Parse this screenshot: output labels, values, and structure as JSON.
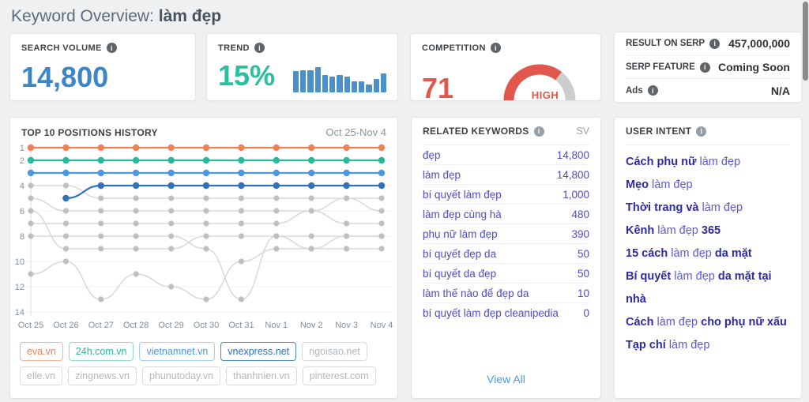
{
  "page": {
    "title_prefix": "Keyword Overview: ",
    "title_keyword": "làm đẹp"
  },
  "colors": {
    "accent_blue": "#3a86c6",
    "accent_green": "#2abf9d",
    "accent_red": "#e2574c",
    "keyword_purple": "#4d4cc4",
    "intent_dark": "#2c2ba4",
    "link_blue": "#4e97e8",
    "gauge_track": "#cbcdce",
    "muted_line": "#d9d9d9"
  },
  "cards": {
    "search_volume": {
      "label": "SEARCH VOLUME",
      "value": "14,800"
    },
    "trend": {
      "label": "TREND",
      "value": "15%",
      "bars": [
        78,
        82,
        82,
        95,
        65,
        60,
        65,
        60,
        40,
        40,
        30,
        50,
        70
      ]
    },
    "competition": {
      "label": "COMPETITION",
      "value": 71,
      "level": "HIGH"
    },
    "serp": {
      "rows": [
        {
          "label": "RESULT ON SERP",
          "value": "457,000,000"
        },
        {
          "label": "SERP FEATURE",
          "value": "Coming Soon"
        },
        {
          "label": "Ads",
          "value": "N/A"
        }
      ]
    }
  },
  "chart_data": {
    "type": "line",
    "title": "TOP 10 POSITIONS HISTORY",
    "date_range": "Oct 25-Nov 4",
    "x": [
      "Oct 25",
      "Oct 26",
      "Oct 27",
      "Oct 28",
      "Oct 29",
      "Oct 30",
      "Oct 31",
      "Nov 1",
      "Nov 2",
      "Nov 3",
      "Nov 4"
    ],
    "ylabel": "position",
    "yticks": [
      1,
      2,
      4,
      6,
      8,
      10,
      12,
      14
    ],
    "ylim": [
      1,
      14
    ],
    "y_inverted": true,
    "grid": true,
    "series": [
      {
        "name": "ngoisao.net",
        "muted": true,
        "color": "#d9d9d9",
        "dot": "#bfbfbf",
        "values": [
          4,
          4,
          5,
          5,
          5,
          5,
          5,
          5,
          5,
          5,
          6
        ]
      },
      {
        "name": "elle.vn",
        "muted": true,
        "color": "#d9d9d9",
        "dot": "#bfbfbf",
        "values": [
          5,
          6,
          6,
          6,
          6,
          6,
          6,
          6,
          6,
          5,
          5
        ]
      },
      {
        "name": "zingnews.vn",
        "muted": true,
        "color": "#d9d9d9",
        "dot": "#bfbfbf",
        "values": [
          6,
          9,
          9,
          9,
          9,
          8,
          8,
          8,
          9,
          9,
          9
        ]
      },
      {
        "name": "phunutoday.vn",
        "muted": true,
        "color": "#d9d9d9",
        "dot": "#bfbfbf",
        "values": [
          7,
          7,
          7,
          7,
          7,
          7,
          7,
          7,
          6,
          7,
          7
        ]
      },
      {
        "name": "thanhnien.vn",
        "muted": true,
        "color": "#d9d9d9",
        "dot": "#bfbfbf",
        "values": [
          8,
          8,
          8,
          8,
          8,
          9,
          13,
          8,
          8,
          8,
          8
        ]
      },
      {
        "name": "pinterest.com",
        "muted": true,
        "color": "#d9d9d9",
        "dot": "#bfbfbf",
        "values": [
          11,
          10,
          13,
          11,
          12,
          13,
          10,
          9,
          9,
          8,
          8
        ]
      },
      {
        "name": "eva.vn",
        "muted": false,
        "color": "#ef8157",
        "values": [
          1,
          1,
          1,
          1,
          1,
          1,
          1,
          1,
          1,
          1,
          1
        ]
      },
      {
        "name": "24h.com.vn",
        "muted": false,
        "color": "#2bb89a",
        "values": [
          2,
          2,
          2,
          2,
          2,
          2,
          2,
          2,
          2,
          2,
          2
        ]
      },
      {
        "name": "vietnamnet.vn",
        "muted": false,
        "color": "#4e96e0",
        "values": [
          3,
          3,
          3,
          3,
          3,
          3,
          3,
          3,
          3,
          3,
          3
        ]
      },
      {
        "name": "vnexpress.net",
        "muted": false,
        "color": "#3071b9",
        "values": [
          null,
          5,
          4,
          4,
          4,
          4,
          4,
          4,
          4,
          4,
          4
        ]
      }
    ]
  },
  "legend": {
    "domains": [
      {
        "label": "eva.vn",
        "text_color": "#ef8157",
        "border_color": "#f5b298"
      },
      {
        "label": "24h.com.vn",
        "text_color": "#2bb89a",
        "border_color": "#8fdcc9"
      },
      {
        "label": "vietnamnet.vn",
        "text_color": "#4e96e0",
        "border_color": "#a9cdf2"
      },
      {
        "label": "vnexpress.net",
        "text_color": "#3071b9",
        "border_color": "#4e86c6"
      },
      {
        "label": "ngoisao.net",
        "text_color": "#b2b8bd",
        "border_color": "#d9dcde"
      },
      {
        "label": "elle.vn",
        "text_color": "#b2b8bd",
        "border_color": "#d9dcde"
      },
      {
        "label": "zingnews.vn",
        "text_color": "#b2b8bd",
        "border_color": "#d9dcde"
      },
      {
        "label": "phunutoday.vn",
        "text_color": "#b2b8bd",
        "border_color": "#d9dcde"
      },
      {
        "label": "thanhnien.vn",
        "text_color": "#b2b8bd",
        "border_color": "#d9dcde"
      },
      {
        "label": "pinterest.com",
        "text_color": "#b2b8bd",
        "border_color": "#d9dcde"
      }
    ]
  },
  "related_keywords": {
    "title": "RELATED KEYWORDS",
    "col_header": "SV",
    "rows": [
      {
        "keyword": "đẹp",
        "sv": "14,800"
      },
      {
        "keyword": "làm đẹp",
        "sv": "14,800"
      },
      {
        "keyword": "bí quyết làm đẹp",
        "sv": "1,000"
      },
      {
        "keyword": "làm đẹp cùng hà",
        "sv": "480"
      },
      {
        "keyword": "phụ nữ làm đẹp",
        "sv": "390"
      },
      {
        "keyword": "bí quyết đẹp da",
        "sv": "50"
      },
      {
        "keyword": "bí quyết da đẹp",
        "sv": "50"
      },
      {
        "keyword": "làm thế nào để đẹp da",
        "sv": "10"
      },
      {
        "keyword": "bí quyết làm đẹp cleanipedia",
        "sv": "0"
      }
    ],
    "view_all": "View All"
  },
  "user_intent": {
    "title": "USER INTENT",
    "items": [
      [
        {
          "t": "Cách phụ nữ ",
          "b": true
        },
        {
          "t": "làm đẹp",
          "b": false
        }
      ],
      [
        {
          "t": "Mẹo ",
          "b": true
        },
        {
          "t": "làm đẹp",
          "b": false
        }
      ],
      [
        {
          "t": "Thời trang và ",
          "b": true
        },
        {
          "t": "làm đẹp",
          "b": false
        }
      ],
      [
        {
          "t": "Kênh ",
          "b": true
        },
        {
          "t": "làm đẹp ",
          "b": false
        },
        {
          "t": "365",
          "b": true
        }
      ],
      [
        {
          "t": "15 cách ",
          "b": true
        },
        {
          "t": "làm đẹp ",
          "b": false
        },
        {
          "t": "da mặt",
          "b": true
        }
      ],
      [
        {
          "t": "Bí quyết ",
          "b": true
        },
        {
          "t": "làm đẹp ",
          "b": false
        },
        {
          "t": "da mặt tại nhà",
          "b": true
        }
      ],
      [
        {
          "t": "Cách ",
          "b": true
        },
        {
          "t": "làm đẹp ",
          "b": false
        },
        {
          "t": "cho phụ nữ xấu",
          "b": true
        }
      ],
      [
        {
          "t": "Tạp chí ",
          "b": true
        },
        {
          "t": "làm đẹp",
          "b": false
        }
      ]
    ]
  }
}
